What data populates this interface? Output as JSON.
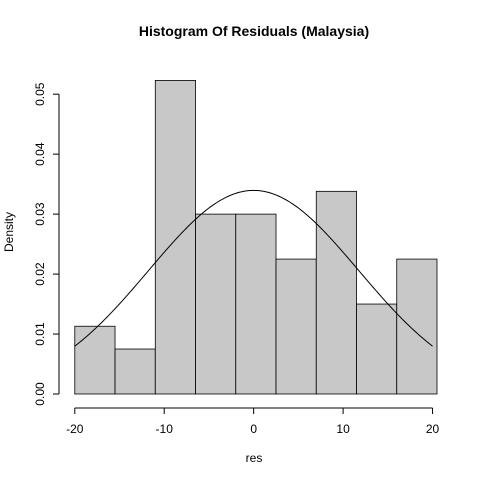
{
  "chart_data": {
    "type": "bar",
    "subtype": "histogram",
    "title": "Histogram Of Residuals (Malaysia)",
    "xlabel": "res",
    "ylabel": "Density",
    "bins": [
      {
        "x0": -20.0,
        "x1": -15.5,
        "density": 0.0113
      },
      {
        "x0": -15.5,
        "x1": -11.0,
        "density": 0.0075
      },
      {
        "x0": -11.0,
        "x1": -6.5,
        "density": 0.0523
      },
      {
        "x0": -6.5,
        "x1": -2.0,
        "density": 0.03
      },
      {
        "x0": -2.0,
        "x1": 2.5,
        "density": 0.03
      },
      {
        "x0": 2.5,
        "x1": 7.0,
        "density": 0.0225
      },
      {
        "x0": 7.0,
        "x1": 11.5,
        "density": 0.0338
      },
      {
        "x0": 11.5,
        "x1": 16.0,
        "density": 0.015
      },
      {
        "x0": 16.0,
        "x1": 20.5,
        "density": 0.0225
      }
    ],
    "normal_curve": {
      "mean": 0,
      "sd": 11.75,
      "x_from": -20,
      "x_to": 20
    },
    "x_ticks": [
      -20,
      -10,
      0,
      10,
      20
    ],
    "x_tick_labels": [
      "-20",
      "-10",
      "0",
      "10",
      "20"
    ],
    "y_ticks": [
      0,
      0.01,
      0.02,
      0.03,
      0.04,
      0.05
    ],
    "y_tick_labels": [
      "0.00",
      "0.01",
      "0.02",
      "0.03",
      "0.04",
      "0.05"
    ],
    "xlim": [
      -20.2,
      20.5
    ],
    "ylim": [
      0,
      0.0537
    ],
    "grid": false,
    "legend": "none",
    "colors": {
      "bar_fill": "#c8c8c8",
      "bar_stroke": "#000000",
      "curve": "#000000"
    }
  }
}
